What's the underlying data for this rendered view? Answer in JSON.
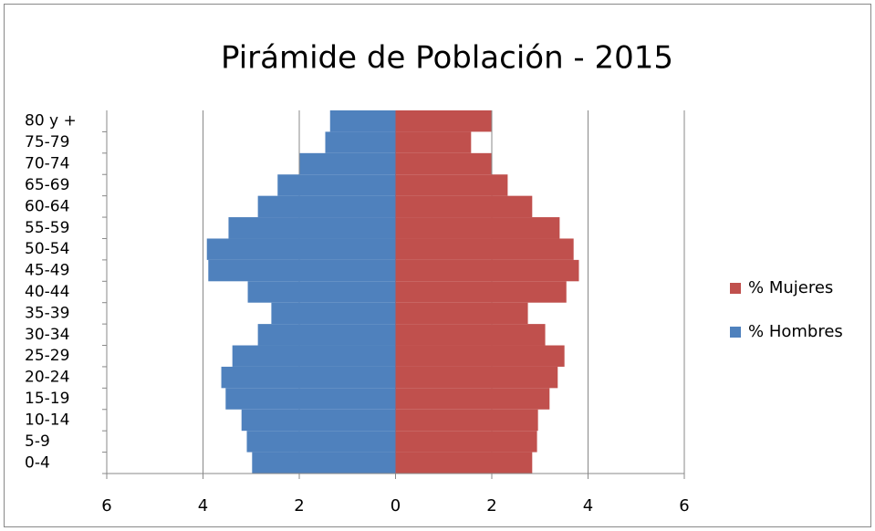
{
  "chart_data": {
    "type": "bar",
    "orientation": "horizontal",
    "stacked": "diverging",
    "title": "Pirámide de Población - 2015",
    "categories": [
      "0-4",
      "5-9",
      "10-14",
      "15-19",
      "20-24",
      "25-29",
      "30-34",
      "35-39",
      "40-44",
      "45-49",
      "50-54",
      "55-59",
      "60-64",
      "65-69",
      "70-74",
      "75-79",
      "80 y +"
    ],
    "series": [
      {
        "name": "% Hombres",
        "color": "#4f81bd",
        "values": [
          -2.98,
          -3.09,
          -3.2,
          -3.53,
          -3.62,
          -3.39,
          -2.86,
          -2.58,
          -3.07,
          -3.89,
          -3.92,
          -3.47,
          -2.86,
          -2.45,
          -1.99,
          -1.46,
          -1.36
        ]
      },
      {
        "name": "% Mujeres",
        "color": "#c0504d",
        "values": [
          2.84,
          2.94,
          2.96,
          3.2,
          3.37,
          3.51,
          3.11,
          2.75,
          3.55,
          3.81,
          3.7,
          3.41,
          2.84,
          2.33,
          1.99,
          1.57,
          1.99
        ]
      }
    ],
    "xlim": [
      -6,
      6
    ],
    "xticks": [
      {
        "value": -6,
        "label": "6"
      },
      {
        "value": -4,
        "label": "4"
      },
      {
        "value": -2,
        "label": "2"
      },
      0,
      2,
      4,
      6
    ],
    "grid": true,
    "legend": "right"
  }
}
